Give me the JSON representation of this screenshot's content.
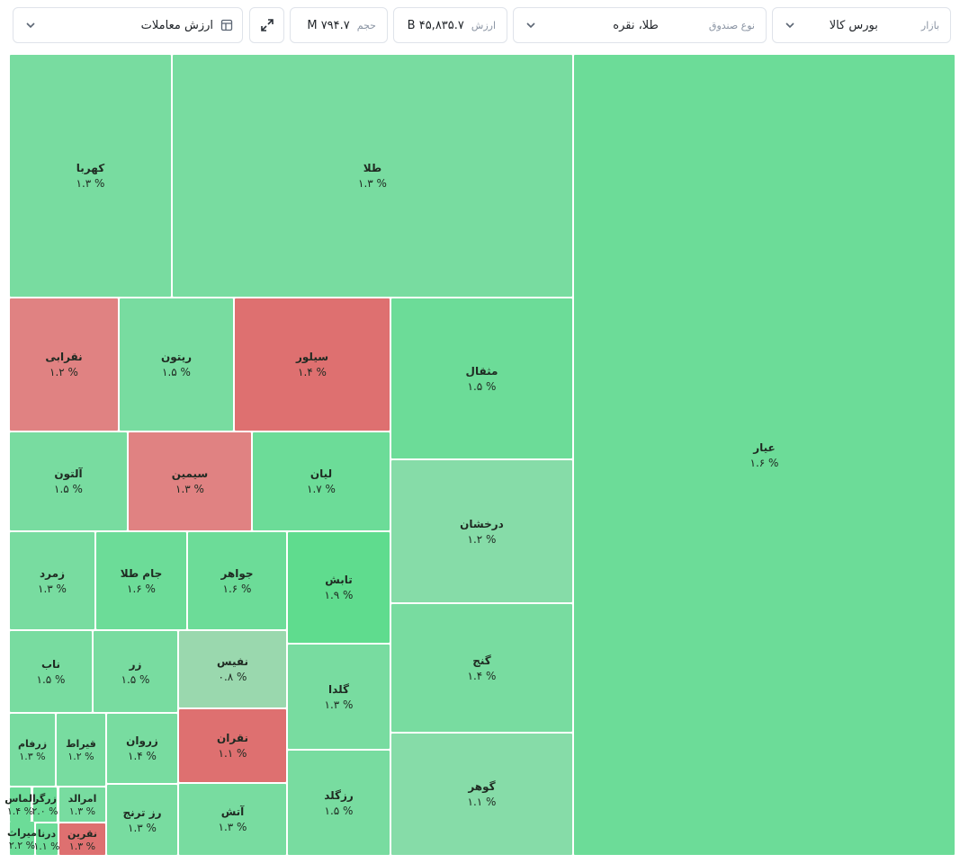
{
  "filters": {
    "market_label": "بازار",
    "market_value": "بورس کالا",
    "fund_type_label": "نوع صندوق",
    "fund_type_value": "طلا، نقره",
    "value_label": "ارزش",
    "value_amount": "۴۵,۸۳۵.۷ B",
    "volume_label": "حجم",
    "volume_amount": "۷۹۴.۷ M",
    "metric_select": "ارزش معاملات"
  },
  "colors": {
    "green_1": "#6cdc98",
    "green_2": "#78dca0",
    "green_light": "#86dca8",
    "green_strong": "#5fdc8e",
    "pale_green": "#9ad8ae",
    "red": "#de7070",
    "red_light": "#e08282"
  },
  "icons": {
    "expand": "expand-icon",
    "chevron": "chevron-down-icon",
    "layout": "layout-icon"
  },
  "treemap": {
    "tiles": [
      {
        "name": "عیار",
        "pct": "۱.۶ %",
        "color": "green_1"
      },
      {
        "name": "طلا",
        "pct": "۱.۳ %",
        "color": "green_2"
      },
      {
        "name": "کهربا",
        "pct": "۱.۳ %",
        "color": "green_2"
      },
      {
        "name": "مثقال",
        "pct": "۱.۵ %",
        "color": "green_1"
      },
      {
        "name": "درخشان",
        "pct": "۱.۲ %",
        "color": "green_light"
      },
      {
        "name": "گنج",
        "pct": "۱.۴ %",
        "color": "green_2"
      },
      {
        "name": "گوهر",
        "pct": "۱.۱ %",
        "color": "green_light"
      },
      {
        "name": "سیلور",
        "pct": "۱.۴ %",
        "color": "red"
      },
      {
        "name": "ریتون",
        "pct": "۱.۵ %",
        "color": "green_2"
      },
      {
        "name": "نقرابی",
        "pct": "۱.۲ %",
        "color": "red_light"
      },
      {
        "name": "لیان",
        "pct": "۱.۷ %",
        "color": "green_1"
      },
      {
        "name": "سیمین",
        "pct": "۱.۳ %",
        "color": "red_light"
      },
      {
        "name": "آلتون",
        "pct": "۱.۵ %",
        "color": "green_2"
      },
      {
        "name": "تابش",
        "pct": "۱.۹ %",
        "color": "green_strong"
      },
      {
        "name": "جواهر",
        "pct": "۱.۶ %",
        "color": "green_1"
      },
      {
        "name": "جام طلا",
        "pct": "۱.۶ %",
        "color": "green_1"
      },
      {
        "name": "زمرد",
        "pct": "۱.۳ %",
        "color": "green_2"
      },
      {
        "name": "گلدا",
        "pct": "۱.۳ %",
        "color": "green_2"
      },
      {
        "name": "نفیس",
        "pct": "۰.۸ %",
        "color": "pale_green"
      },
      {
        "name": "زر",
        "pct": "۱.۵ %",
        "color": "green_2"
      },
      {
        "name": "ناب",
        "pct": "۱.۵ %",
        "color": "green_2"
      },
      {
        "name": "رزگلد",
        "pct": "۱.۵ %",
        "color": "green_2"
      },
      {
        "name": "نقران",
        "pct": "۱.۱ %",
        "color": "red"
      },
      {
        "name": "آتش",
        "pct": "۱.۳ %",
        "color": "green_2"
      },
      {
        "name": "زروان",
        "pct": "۱.۴ %",
        "color": "green_2"
      },
      {
        "name": "قیراط",
        "pct": "۱.۲ %",
        "color": "green_2"
      },
      {
        "name": "زرفام",
        "pct": "۱.۳ %",
        "color": "green_2"
      },
      {
        "name": "رز ترنج",
        "pct": "۱.۳ %",
        "color": "green_2"
      },
      {
        "name": "امرالد",
        "pct": "۱.۳ %",
        "color": "green_2"
      },
      {
        "name": "نقرین",
        "pct": "۱.۳ %",
        "color": "red"
      },
      {
        "name": "زرگر",
        "pct": "۲.۰ %",
        "color": "green_1"
      },
      {
        "name": "درنا",
        "pct": "۱.۱ %",
        "color": "green_1"
      },
      {
        "name": "الماس",
        "pct": "۱.۴ %",
        "color": "green_1"
      },
      {
        "name": "میراث",
        "pct": "۲.۲ %",
        "color": "green_1"
      }
    ]
  }
}
